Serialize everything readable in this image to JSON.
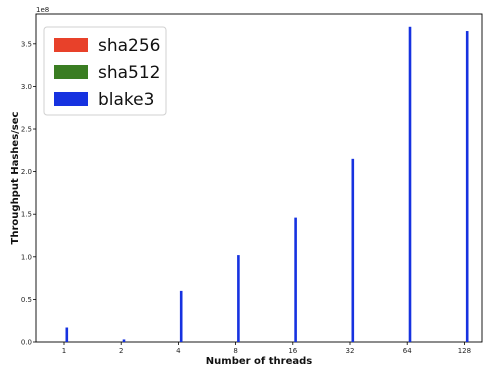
{
  "chart_data": {
    "type": "bar",
    "categories": [
      "1",
      "2",
      "4",
      "8",
      "16",
      "32",
      "64",
      "128"
    ],
    "series": [
      {
        "name": "sha256",
        "color": "#e8412a",
        "values": [
          0,
          0,
          0,
          0,
          0,
          0,
          0,
          0
        ]
      },
      {
        "name": "sha512",
        "color": "#3a7d22",
        "values": [
          0,
          0,
          0,
          0,
          0,
          0,
          0,
          0
        ]
      },
      {
        "name": "blake3",
        "color": "#1632e0",
        "values": [
          0.17,
          0.03,
          0.6,
          1.02,
          1.46,
          2.15,
          3.7,
          3.65
        ]
      }
    ],
    "xlabel": "Number of threads",
    "ylabel": "Throughput Hashes/sec",
    "scale_label": "1e8",
    "ylim": [
      0,
      3.85
    ],
    "yticks": [
      "0.0",
      "0.5",
      "1.0",
      "1.5",
      "2.0",
      "2.5",
      "3.0",
      "3.5"
    ],
    "legend_position": "upper-left",
    "grid": false
  }
}
